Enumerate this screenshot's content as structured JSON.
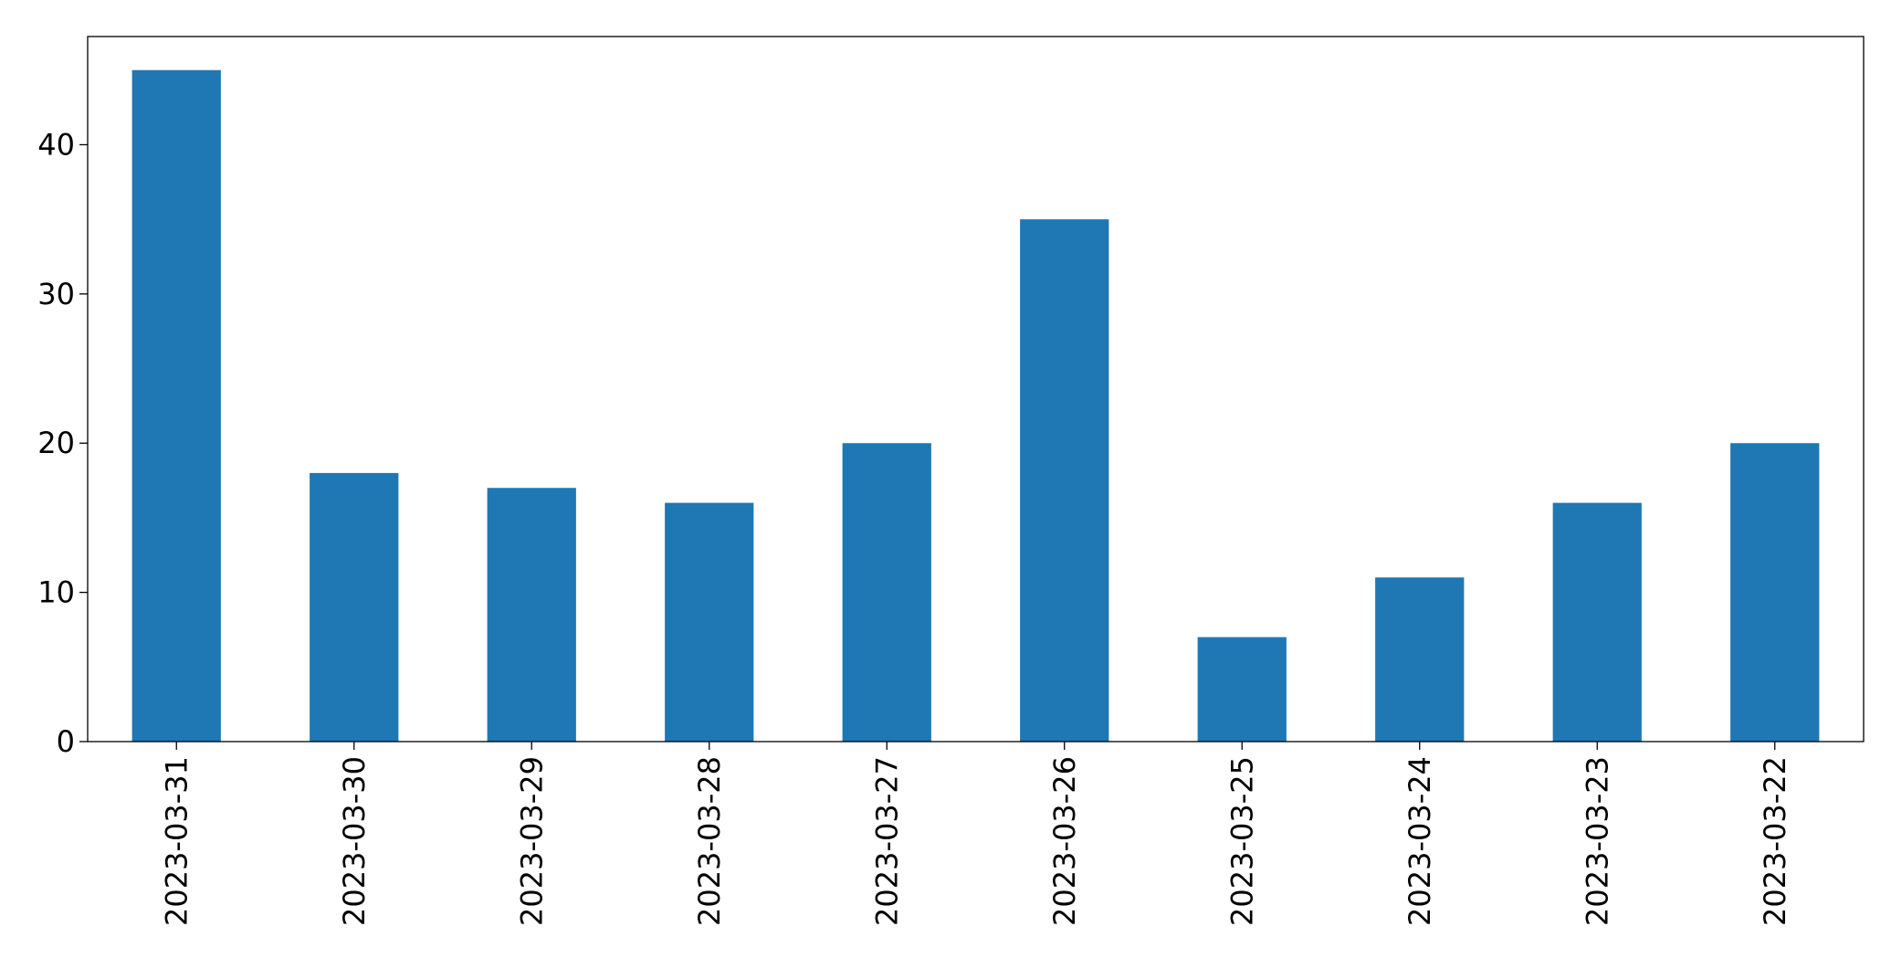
{
  "chart_data": {
    "type": "bar",
    "categories": [
      "2023-03-31",
      "2023-03-30",
      "2023-03-29",
      "2023-03-28",
      "2023-03-27",
      "2023-03-26",
      "2023-03-25",
      "2023-03-24",
      "2023-03-23",
      "2023-03-22"
    ],
    "values": [
      45,
      18,
      17,
      16,
      20,
      35,
      7,
      11,
      16,
      20
    ],
    "color": "#1f77b4",
    "ylim": [
      0,
      47.25
    ],
    "yticks": [
      0,
      10,
      20,
      30,
      40
    ],
    "grid": false
  }
}
